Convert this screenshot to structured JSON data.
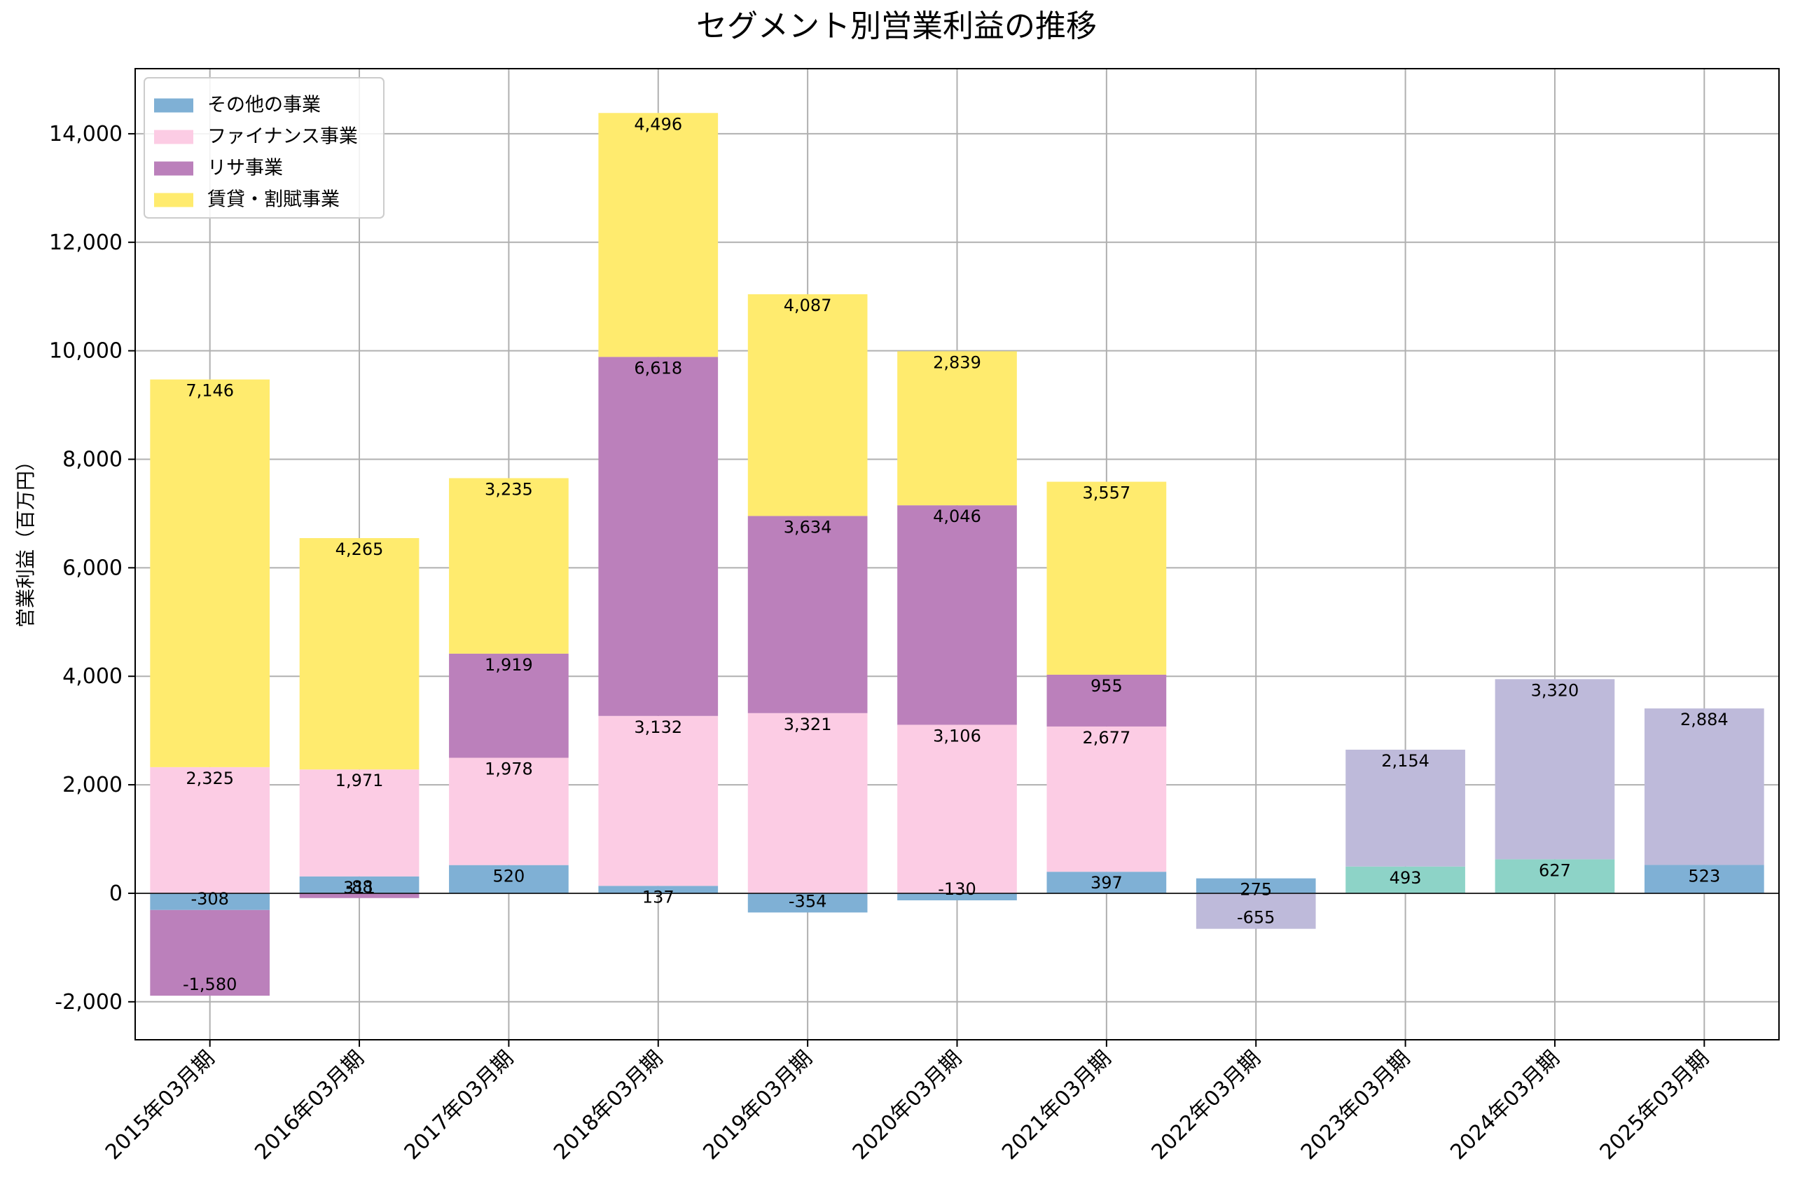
{
  "chart_data": {
    "type": "bar",
    "stacked": true,
    "title": "セグメント別営業利益の推移",
    "ylabel": "営業利益（百万円）",
    "xlabel": "",
    "ylim": [
      -2700,
      15200
    ],
    "yticks": [
      -2000,
      0,
      2000,
      4000,
      6000,
      8000,
      10000,
      12000,
      14000
    ],
    "ytick_labels": [
      "-2,000",
      "0",
      "2,000",
      "4,000",
      "6,000",
      "8,000",
      "10,000",
      "12,000",
      "14,000"
    ],
    "grid": true,
    "legend_position": "top-left",
    "categories": [
      "2015年03月期",
      "2016年03月期",
      "2017年03月期",
      "2018年03月期",
      "2019年03月期",
      "2020年03月期",
      "2021年03月期",
      "2022年03月期",
      "2023年03月期",
      "2024年03月期",
      "2025年03月期"
    ],
    "series": [
      {
        "name": "その他の事業",
        "in_legend": true,
        "color": "#7fb0d5",
        "values": [
          -308,
          311,
          520,
          137,
          -354,
          -130,
          397,
          275,
          null,
          null,
          523
        ],
        "labels": [
          "-308",
          "311",
          "520",
          "137",
          "-354",
          "-130",
          "397",
          "275",
          null,
          null,
          "523"
        ]
      },
      {
        "name": "ファイナンス事業",
        "in_legend": true,
        "color": "#fccce4",
        "values": [
          2325,
          1971,
          1978,
          3132,
          3321,
          3106,
          2677,
          null,
          null,
          null,
          null
        ],
        "labels": [
          "2,325",
          "1,971",
          "1,978",
          "3,132",
          "3,321",
          "3,106",
          "2,677",
          null,
          null,
          null,
          null
        ]
      },
      {
        "name": "リサ事業",
        "in_legend": true,
        "color": "#bb80bb",
        "values": [
          -1580,
          -88,
          1919,
          6618,
          3634,
          4046,
          955,
          null,
          null,
          null,
          null
        ],
        "labels": [
          "-1,580",
          "-88",
          "1,919",
          "6,618",
          "3,634",
          "4,046",
          "955",
          null,
          null,
          null,
          null
        ]
      },
      {
        "name": "賃貸・割賦事業",
        "in_legend": true,
        "color": "#ffeb6e",
        "values": [
          7146,
          4265,
          3235,
          4496,
          4087,
          2839,
          3557,
          null,
          null,
          null,
          null
        ],
        "labels": [
          "7,146",
          "4,265",
          "3,235",
          "4,496",
          "4,087",
          "2,839",
          "3,557",
          null,
          null,
          null,
          null
        ]
      },
      {
        "name": "",
        "in_legend": false,
        "color": "#8dd3c7",
        "values": [
          null,
          null,
          null,
          null,
          null,
          null,
          null,
          null,
          493,
          627,
          null
        ],
        "labels": [
          null,
          null,
          null,
          null,
          null,
          null,
          null,
          null,
          "493",
          "627",
          null
        ]
      },
      {
        "name": "",
        "in_legend": false,
        "color": "#bebada",
        "values": [
          null,
          null,
          null,
          null,
          null,
          null,
          null,
          -655,
          2154,
          3320,
          2884
        ],
        "labels": [
          null,
          null,
          null,
          null,
          null,
          null,
          null,
          "-655",
          "2,154",
          "3,320",
          "2,884"
        ]
      }
    ]
  }
}
